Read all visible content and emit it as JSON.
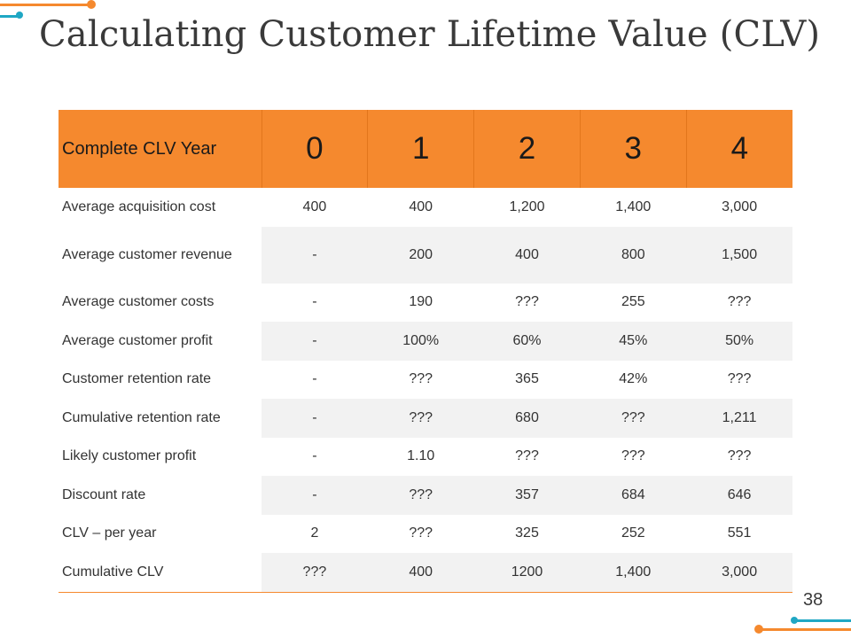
{
  "slide": {
    "title": "Calculating Customer Lifetime Value (CLV)",
    "page_number": "38",
    "accent_color": "#f5892e",
    "secondary_color": "#1fa7c4"
  },
  "table": {
    "header_label": "Complete CLV Year",
    "years": [
      "0",
      "1",
      "2",
      "3",
      "4"
    ],
    "rows": [
      {
        "label": "Average acquisition cost",
        "values": [
          "400",
          "400",
          "1,200",
          "1,400",
          "3,000"
        ]
      },
      {
        "label": "Average customer revenue",
        "values": [
          "-",
          "200",
          "400",
          "800",
          "1,500"
        ]
      },
      {
        "label": "Average customer costs",
        "values": [
          "-",
          "190",
          "???",
          "255",
          "???"
        ]
      },
      {
        "label": "Average customer profit",
        "values": [
          "-",
          "100%",
          "60%",
          "45%",
          "50%"
        ]
      },
      {
        "label": "Customer retention rate",
        "values": [
          "-",
          "???",
          "365",
          "42%",
          "???"
        ]
      },
      {
        "label": "Cumulative retention rate",
        "values": [
          "-",
          "???",
          "680",
          "???",
          "1,211"
        ]
      },
      {
        "label": "Likely customer profit",
        "values": [
          "-",
          "1.10",
          "???",
          "???",
          "???"
        ]
      },
      {
        "label": "Discount rate",
        "values": [
          "-",
          "???",
          "357",
          "684",
          "646"
        ]
      },
      {
        "label": "CLV – per year",
        "values": [
          "2",
          "???",
          "325",
          "252",
          "551"
        ]
      },
      {
        "label": "Cumulative CLV",
        "values": [
          "???",
          "400",
          "1200",
          "1,400",
          "3,000"
        ]
      }
    ]
  }
}
